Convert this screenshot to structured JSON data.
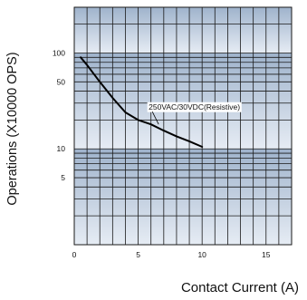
{
  "chart_data": {
    "type": "line",
    "xlabel": "Contact Current (A)",
    "ylabel": "Operations (X10000 OPS)",
    "xlim": [
      0,
      17
    ],
    "ylim": [
      1,
      300
    ],
    "yscale": "log",
    "x_ticks": [
      0,
      5,
      10,
      15
    ],
    "y_ticks": [
      5,
      10,
      50,
      100
    ],
    "grid": true,
    "series": [
      {
        "name": "250VAC/30VDC(Resistive)",
        "x": [
          0.5,
          1,
          2,
          3,
          4,
          5,
          6,
          7,
          8,
          9,
          10
        ],
        "y": [
          90,
          75,
          50,
          34,
          24,
          20,
          18,
          15.5,
          13.5,
          12,
          10.5
        ]
      }
    ],
    "annotations": [
      {
        "text": "250VAC/30VDC(Resistive)",
        "x": 6.6,
        "y": 18
      }
    ],
    "colors": {
      "band_dark": "#9fb3cc",
      "band_light": "#e6ecf4",
      "grid": "#1a1a1a",
      "line": "#000000"
    }
  }
}
